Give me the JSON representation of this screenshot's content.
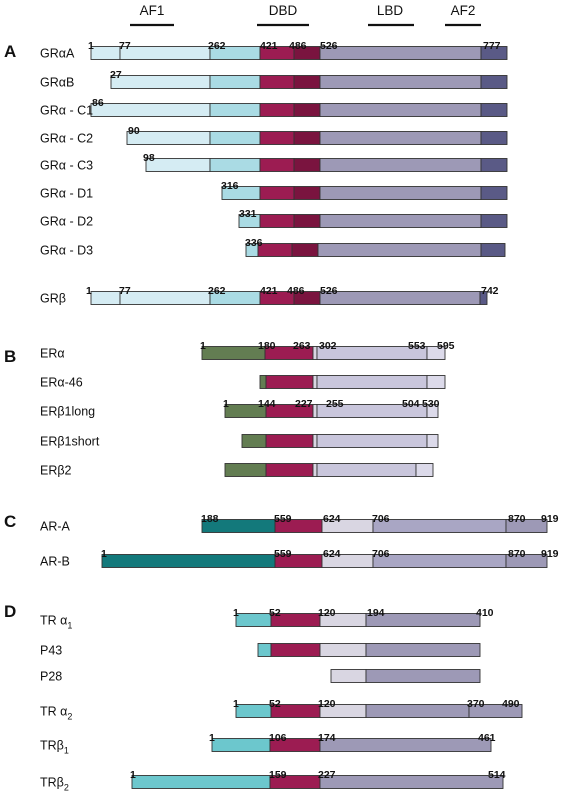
{
  "colors": {
    "gr_ntd": "#d5ecf3",
    "gr_af1": "#aadbe4",
    "dbd": "#9c1c52",
    "dbd_dark": "#7a143f",
    "hinge_light": "#d9d6e2",
    "lbd": "#9d99b6",
    "lbd_light": "#c9c6dc",
    "lbd_pale": "#dcdaea",
    "af2": "#5a5a86",
    "er_ntd": "#637d52",
    "ar_ntd": "#13797b",
    "ar_lbd": "#a9a6c4",
    "tr_ntd": "#6cc7cd"
  },
  "headers": [
    "AF1",
    "DBD",
    "LBD",
    "AF2"
  ],
  "sections": [
    {
      "letter": "A",
      "rows": [
        {
          "name": "GRαA",
          "numbers": [
            "1",
            "77",
            "262",
            "421",
            "486",
            "526",
            "777"
          ]
        },
        {
          "name": "GRαB",
          "numbers": [
            "27"
          ]
        },
        {
          "name": "GRα - C1",
          "numbers": [
            "86"
          ]
        },
        {
          "name": "GRα - C2",
          "numbers": [
            "90"
          ]
        },
        {
          "name": "GRα - C3",
          "numbers": [
            "98"
          ]
        },
        {
          "name": "GRα - D1",
          "numbers": [
            "316"
          ]
        },
        {
          "name": "GRα - D2",
          "numbers": [
            "331"
          ]
        },
        {
          "name": "GRα - D3",
          "numbers": [
            "336"
          ]
        },
        {
          "name": "GRβ",
          "numbers": [
            "1",
            "77",
            "262",
            "421",
            "486",
            "526",
            "742"
          ]
        }
      ]
    },
    {
      "letter": "B",
      "rows": [
        {
          "name": "ERα",
          "numbers": [
            "1",
            "180",
            "263",
            "302",
            "553",
            "595"
          ]
        },
        {
          "name": "ERα-46",
          "numbers": []
        },
        {
          "name": "ERβ1long",
          "numbers": [
            "1",
            "144",
            "227",
            "255",
            "504",
            "530"
          ]
        },
        {
          "name": "ERβ1short",
          "numbers": []
        },
        {
          "name": "ERβ2",
          "numbers": []
        }
      ]
    },
    {
      "letter": "C",
      "rows": [
        {
          "name": "AR-A",
          "numbers": [
            "188",
            "559",
            "624",
            "706",
            "870",
            "919"
          ]
        },
        {
          "name": "AR-B",
          "numbers": [
            "1",
            "559",
            "624",
            "706",
            "870",
            "919"
          ]
        }
      ]
    },
    {
      "letter": "D",
      "rows": [
        {
          "name": "TR α",
          "sub": "1",
          "numbers": [
            "1",
            "52",
            "120",
            "194",
            "410"
          ]
        },
        {
          "name": "P43",
          "numbers": []
        },
        {
          "name": "P28",
          "numbers": []
        },
        {
          "name": "TR α",
          "sub": "2",
          "numbers": [
            "1",
            "52",
            "120",
            "370",
            "490"
          ]
        },
        {
          "name": "TRβ",
          "sub": "1",
          "numbers": [
            "1",
            "106",
            "174",
            "461"
          ]
        },
        {
          "name": "TRβ",
          "sub": "2",
          "numbers": [
            "1",
            "159",
            "227",
            "514"
          ]
        }
      ]
    }
  ]
}
